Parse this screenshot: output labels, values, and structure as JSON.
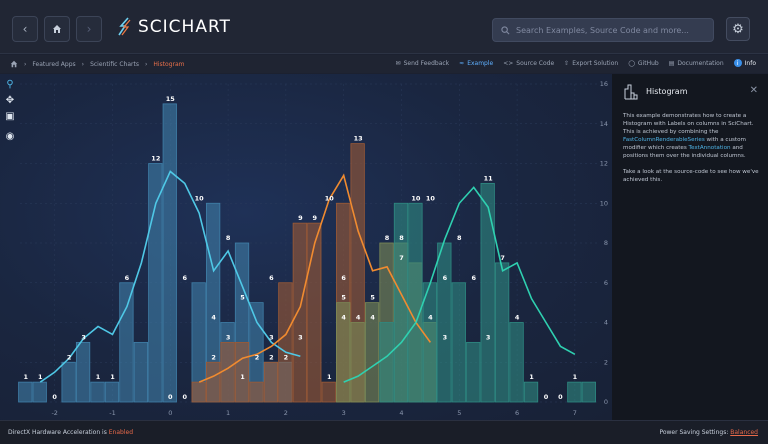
{
  "header": {
    "back_icon": "chevron-left-icon",
    "home_icon": "home-icon",
    "forward_icon": "chevron-right-icon",
    "logo_text": "SCICHART",
    "search_placeholder": "Search Examples, Source Code and more...",
    "settings_icon": "gear-icon"
  },
  "breadcrumb": {
    "items": [
      "Featured Apps",
      "Scientific Charts",
      "Histogram"
    ]
  },
  "actions": {
    "send_feedback": "Send Feedback",
    "example": "Example",
    "source_code": "Source Code",
    "export_solution": "Export Solution",
    "github": "GitHub",
    "documentation": "Documentation",
    "info": "Info"
  },
  "panel": {
    "title": "Histogram",
    "p1_a": "This example demonstrates how to create a Histogram with Labels on columns in SciChart. This is achieved by combining the ",
    "p1_link1": "FastColumnRenderableSeries",
    "p1_b": " with a custom modifier which creates ",
    "p1_link2": "TextAnnotation",
    "p1_c": " and positions them over the individual columns.",
    "p2": "Take a look at the source-code to see how we've achieved this."
  },
  "status": {
    "left_prefix": "DirectX Hardware Acceleration is ",
    "left_value": "Enabled",
    "right_prefix": "Power Saving Settings: ",
    "right_value": "Balanced"
  },
  "colors": {
    "blue_series": "#3f7fa8",
    "brown_series": "#9c5a36",
    "olive_series": "#7b8a56",
    "teal_series": "#2e8a82",
    "blue_line": "#4fc8e6",
    "orange_line": "#f08b30",
    "teal_line": "#2fd0b0"
  },
  "chart_data": {
    "type": "bar",
    "x_ticks": [
      "-2",
      "-1",
      "0",
      "1",
      "2",
      "3",
      "4",
      "5",
      "6",
      "7"
    ],
    "y_ticks": [
      "0",
      "2",
      "4",
      "6",
      "8",
      "10",
      "12",
      "14",
      "16"
    ],
    "ylim": [
      0,
      16
    ],
    "xlim": [
      -2.6,
      7.4
    ],
    "bin_width": 0.25,
    "series": [
      {
        "x": [
          -2.5,
          -2.25,
          -2.0,
          -1.75,
          -1.5,
          -1.25,
          -1.0,
          -0.75,
          -0.5,
          -0.25,
          0.0,
          0.25,
          0.5,
          0.75,
          1.0,
          1.25,
          1.5,
          1.75,
          2.0
        ],
        "values": [
          1,
          1,
          0,
          2,
          3,
          1,
          1,
          6,
          3,
          12,
          15,
          0,
          6,
          10,
          4,
          8,
          5,
          2,
          2
        ],
        "color": "blue"
      },
      {
        "x": [
          0.5,
          0.75,
          1.0,
          1.25,
          1.5,
          1.75,
          2.0,
          2.25,
          2.5,
          2.75,
          3.0,
          3.25
        ],
        "values": [
          1,
          2,
          3,
          3,
          1,
          2,
          6,
          9,
          9,
          1,
          10,
          13
        ],
        "color": "brown"
      },
      {
        "x": [
          3.0,
          3.25,
          3.5,
          3.75,
          4.0,
          4.25,
          4.5
        ],
        "values": [
          5,
          4,
          5,
          8,
          8,
          7,
          4
        ],
        "color": "olive"
      },
      {
        "x": [
          3.75,
          4.0,
          4.25,
          4.5,
          4.75,
          5.0,
          5.25,
          5.5,
          5.75,
          6.0,
          6.25,
          6.5,
          6.75,
          7.0,
          7.25
        ],
        "values": [
          4,
          10,
          10,
          6,
          8,
          6,
          3,
          11,
          7,
          4,
          1,
          0,
          0,
          1,
          1
        ],
        "color": "teal"
      }
    ],
    "bar_labels": [
      {
        "x": -2.5,
        "y": 1,
        "text": "1"
      },
      {
        "x": -2.25,
        "y": 1,
        "text": "1"
      },
      {
        "x": -2.0,
        "y": 0,
        "text": "0"
      },
      {
        "x": -1.75,
        "y": 2,
        "text": "2"
      },
      {
        "x": -1.5,
        "y": 3,
        "text": "3"
      },
      {
        "x": -1.25,
        "y": 1,
        "text": "1"
      },
      {
        "x": -1.0,
        "y": 1,
        "text": "1"
      },
      {
        "x": -0.75,
        "y": 6,
        "text": "6"
      },
      {
        "x": -0.25,
        "y": 12,
        "text": "12"
      },
      {
        "x": 0.0,
        "y": 15,
        "text": "15"
      },
      {
        "x": 0.0,
        "y": 0,
        "text": "0"
      },
      {
        "x": 0.25,
        "y": 0,
        "text": "0"
      },
      {
        "x": 0.25,
        "y": 6,
        "text": "6"
      },
      {
        "x": 0.5,
        "y": 10,
        "text": "10"
      },
      {
        "x": 0.75,
        "y": 4,
        "text": "4"
      },
      {
        "x": 1.0,
        "y": 8,
        "text": "8"
      },
      {
        "x": 1.25,
        "y": 5,
        "text": "5"
      },
      {
        "x": 0.75,
        "y": 2,
        "text": "2"
      },
      {
        "x": 1.0,
        "y": 3,
        "text": "3"
      },
      {
        "x": 1.25,
        "y": 1,
        "text": "1"
      },
      {
        "x": 1.5,
        "y": 2,
        "text": "2"
      },
      {
        "x": 1.75,
        "y": 3,
        "text": "3"
      },
      {
        "x": 1.75,
        "y": 2,
        "text": "2"
      },
      {
        "x": 1.75,
        "y": 6,
        "text": "6"
      },
      {
        "x": 2.0,
        "y": 2,
        "text": "2"
      },
      {
        "x": 2.25,
        "y": 3,
        "text": "3"
      },
      {
        "x": 2.25,
        "y": 9,
        "text": "9"
      },
      {
        "x": 2.5,
        "y": 9,
        "text": "9"
      },
      {
        "x": 2.75,
        "y": 10,
        "text": "10"
      },
      {
        "x": 2.75,
        "y": 1,
        "text": "1"
      },
      {
        "x": 3.0,
        "y": 6,
        "text": "6"
      },
      {
        "x": 3.0,
        "y": 5,
        "text": "5"
      },
      {
        "x": 3.25,
        "y": 13,
        "text": "13"
      },
      {
        "x": 3.0,
        "y": 4,
        "text": "4"
      },
      {
        "x": 3.25,
        "y": 4,
        "text": "4"
      },
      {
        "x": 3.5,
        "y": 4,
        "text": "4"
      },
      {
        "x": 3.5,
        "y": 5,
        "text": "5"
      },
      {
        "x": 3.75,
        "y": 8,
        "text": "8"
      },
      {
        "x": 4.0,
        "y": 8,
        "text": "8"
      },
      {
        "x": 4.0,
        "y": 7,
        "text": "7"
      },
      {
        "x": 4.25,
        "y": 10,
        "text": "10"
      },
      {
        "x": 4.5,
        "y": 10,
        "text": "10"
      },
      {
        "x": 4.5,
        "y": 4,
        "text": "4"
      },
      {
        "x": 4.75,
        "y": 3,
        "text": "3"
      },
      {
        "x": 4.75,
        "y": 6,
        "text": "6"
      },
      {
        "x": 5.0,
        "y": 8,
        "text": "8"
      },
      {
        "x": 5.25,
        "y": 6,
        "text": "6"
      },
      {
        "x": 5.5,
        "y": 11,
        "text": "11"
      },
      {
        "x": 5.5,
        "y": 3,
        "text": "3"
      },
      {
        "x": 5.75,
        "y": 7,
        "text": "7"
      },
      {
        "x": 6.0,
        "y": 4,
        "text": "4"
      },
      {
        "x": 6.25,
        "y": 1,
        "text": "1"
      },
      {
        "x": 6.5,
        "y": 0,
        "text": "0"
      },
      {
        "x": 6.75,
        "y": 0,
        "text": "0"
      },
      {
        "x": 7.0,
        "y": 1,
        "text": "1"
      }
    ],
    "lines": [
      {
        "color": "blue",
        "x": [
          -2.25,
          -2.0,
          -1.75,
          -1.5,
          -1.25,
          -1.0,
          -0.75,
          -0.5,
          -0.25,
          0.0,
          0.25,
          0.5,
          0.75,
          1.0,
          1.25,
          1.5,
          1.75,
          2.0,
          2.25
        ],
        "y": [
          1.0,
          1.5,
          2.2,
          3.2,
          3.8,
          3.4,
          4.8,
          7.0,
          10.0,
          11.6,
          11.0,
          9.5,
          6.6,
          7.6,
          5.8,
          4.0,
          3.0,
          2.5,
          2.3
        ]
      },
      {
        "color": "orange",
        "x": [
          0.5,
          0.75,
          1.0,
          1.25,
          1.5,
          1.75,
          2.0,
          2.25,
          2.5,
          2.75,
          3.0,
          3.25,
          3.5,
          3.75,
          4.0,
          4.25,
          4.5
        ],
        "y": [
          1.0,
          1.3,
          1.7,
          2.2,
          2.4,
          2.8,
          3.4,
          4.8,
          8.0,
          10.2,
          11.4,
          8.6,
          6.6,
          6.8,
          5.4,
          4.0,
          3.0
        ]
      },
      {
        "color": "teal",
        "x": [
          3.0,
          3.25,
          3.5,
          3.75,
          4.0,
          4.25,
          4.5,
          4.75,
          5.0,
          5.25,
          5.5,
          5.75,
          6.0,
          6.25,
          6.5,
          6.75,
          7.0
        ],
        "y": [
          1.0,
          1.3,
          1.8,
          2.3,
          3.0,
          4.0,
          6.0,
          8.2,
          10.0,
          10.8,
          9.8,
          6.6,
          7.0,
          5.2,
          4.0,
          2.8,
          2.4
        ]
      }
    ]
  }
}
